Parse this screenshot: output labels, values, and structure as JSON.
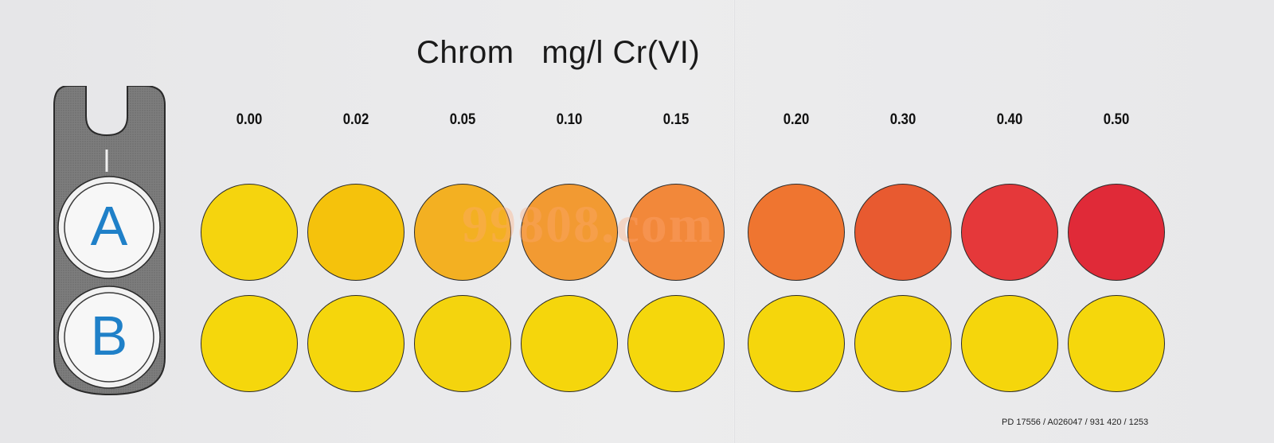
{
  "title": "Chrom   mg/l Cr(VI)",
  "comparator": {
    "slot_a_label": "A",
    "slot_b_label": "B",
    "accent_color": "#1f80c8",
    "body_color": "#7a7a7a"
  },
  "scale": [
    {
      "value": "0.00",
      "color_a": "#f5d40e",
      "color_b": "#f5d70c"
    },
    {
      "value": "0.02",
      "color_a": "#f5c20c",
      "color_b": "#f5d60c"
    },
    {
      "value": "0.05",
      "color_a": "#f3b022",
      "color_b": "#f4d40e"
    },
    {
      "value": "0.10",
      "color_a": "#f29a32",
      "color_b": "#f5d60c"
    },
    {
      "value": "0.15",
      "color_a": "#f2883a",
      "color_b": "#f5d70c"
    },
    {
      "value": "0.20",
      "color_a": "#ef7530",
      "color_b": "#f5d60c"
    },
    {
      "value": "0.30",
      "color_a": "#e85a30",
      "color_b": "#f5d40e"
    },
    {
      "value": "0.40",
      "color_a": "#e5383a",
      "color_b": "#f5d60c"
    },
    {
      "value": "0.50",
      "color_a": "#e02a38",
      "color_b": "#f5d70c"
    }
  ],
  "watermark": "99808.com",
  "footer_code": "PD 17556 / A026047 / 931 420 / 1253"
}
